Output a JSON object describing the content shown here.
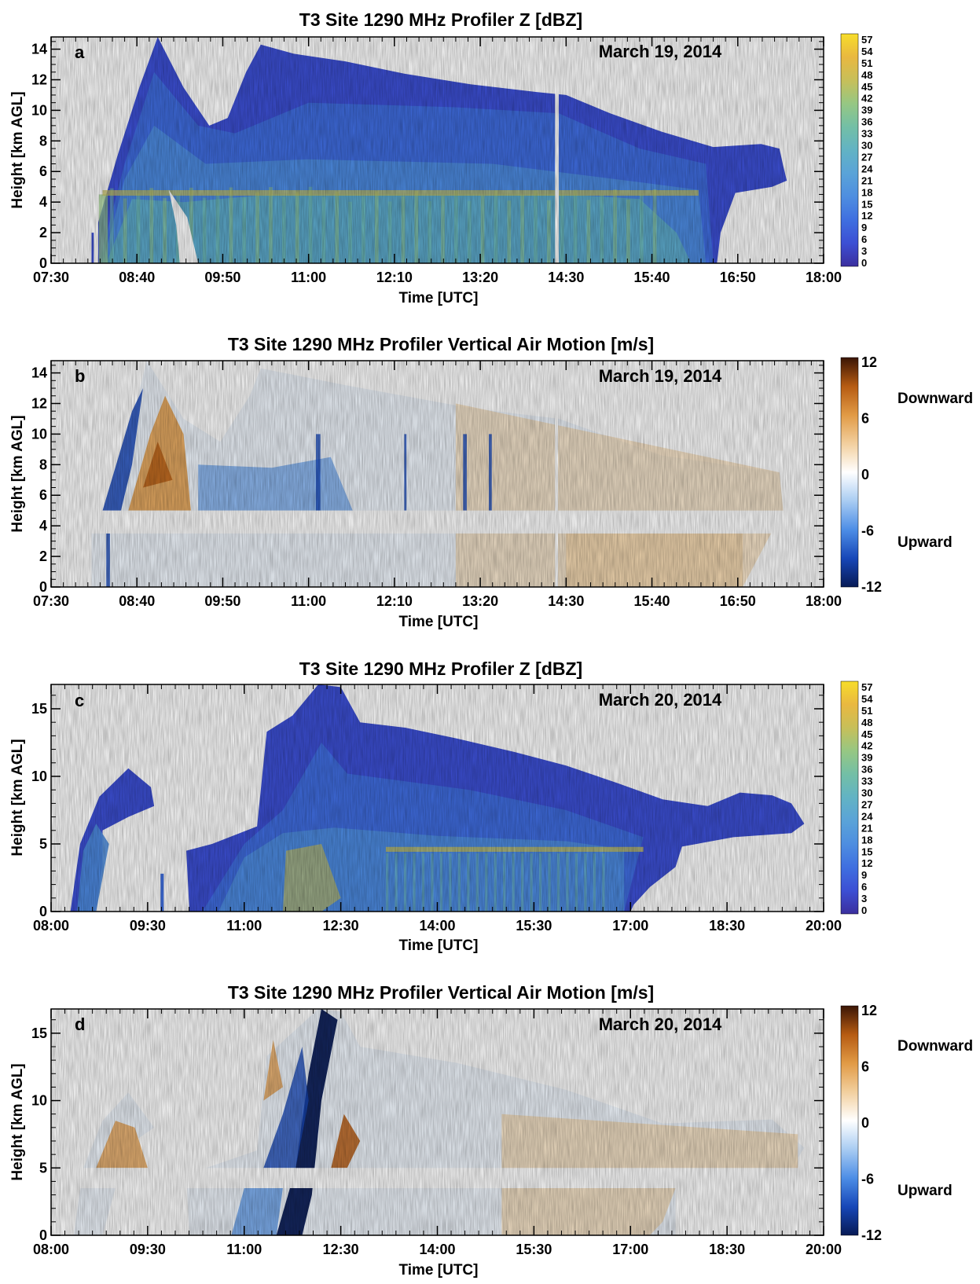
{
  "chart_data": [
    {
      "type": "heatmap",
      "panel": "a",
      "title": "T3 Site 1290 MHz Profiler Z [dBZ]",
      "date": "March 19, 2014",
      "xlabel": "Time [UTC]",
      "ylabel": "Height [km AGL]",
      "x_ticks": [
        "07:30",
        "08:40",
        "09:50",
        "11:00",
        "12:10",
        "13:20",
        "14:30",
        "15:40",
        "16:50",
        "18:00"
      ],
      "y_ticks": [
        "0",
        "2",
        "4",
        "6",
        "8",
        "10",
        "12",
        "14"
      ],
      "y_tick_values": [
        0,
        2,
        4,
        6,
        8,
        10,
        12,
        14
      ],
      "ylim": [
        0,
        14.8
      ],
      "colorbar": {
        "ticks": [
          "0",
          "3",
          "6",
          "9",
          "12",
          "15",
          "18",
          "21",
          "24",
          "27",
          "30",
          "33",
          "36",
          "39",
          "42",
          "45",
          "48",
          "51",
          "54",
          "57"
        ],
        "range": [
          0,
          57
        ]
      },
      "echo_top_km": [
        [
          8.1,
          2.0
        ],
        [
          8.4,
          7.0
        ],
        [
          8.7,
          11.5
        ],
        [
          8.95,
          14.8
        ],
        [
          9.3,
          11.5
        ],
        [
          9.65,
          9.0
        ],
        [
          9.9,
          9.5
        ],
        [
          10.15,
          12.5
        ],
        [
          10.35,
          14.3
        ],
        [
          10.8,
          13.7
        ],
        [
          11.5,
          13.2
        ],
        [
          12.3,
          12.4
        ],
        [
          13.2,
          11.7
        ],
        [
          14.1,
          11.2
        ],
        [
          14.5,
          11.0
        ],
        [
          15.1,
          9.8
        ],
        [
          15.8,
          8.6
        ],
        [
          16.5,
          7.6
        ],
        [
          17.15,
          7.8
        ],
        [
          17.4,
          7.5
        ]
      ],
      "bright_band_km": 4.6
    },
    {
      "type": "heatmap",
      "panel": "b",
      "title": "T3 Site 1290 MHz Profiler Vertical Air Motion [m/s]",
      "date": "March 19, 2014",
      "xlabel": "Time [UTC]",
      "ylabel": "Height [km AGL]",
      "x_ticks": [
        "07:30",
        "08:40",
        "09:50",
        "11:00",
        "12:10",
        "13:20",
        "14:30",
        "15:40",
        "16:50",
        "18:00"
      ],
      "y_ticks": [
        "0",
        "2",
        "4",
        "6",
        "8",
        "10",
        "12",
        "14"
      ],
      "y_tick_values": [
        0,
        2,
        4,
        6,
        8,
        10,
        12,
        14
      ],
      "ylim": [
        0,
        14.8
      ],
      "colorbar": {
        "ticks": [
          "12",
          "6",
          "0",
          "-6",
          "-12"
        ],
        "range": [
          -12,
          12
        ]
      },
      "labels": {
        "top": "Downward",
        "bottom": "Upward"
      },
      "gap_km": [
        3.5,
        5.0
      ]
    },
    {
      "type": "heatmap",
      "panel": "c",
      "title": "T3 Site 1290 MHz Profiler Z [dBZ]",
      "date": "March 20, 2014",
      "xlabel": "Time [UTC]",
      "ylabel": "Height [km AGL]",
      "x_ticks": [
        "08:00",
        "09:30",
        "11:00",
        "12:30",
        "14:00",
        "15:30",
        "17:00",
        "18:30",
        "20:00"
      ],
      "y_ticks": [
        "0",
        "5",
        "10",
        "15"
      ],
      "y_tick_values": [
        0,
        5,
        10,
        15
      ],
      "ylim": [
        0,
        16.8
      ],
      "colorbar": {
        "ticks": [
          "0",
          "3",
          "6",
          "9",
          "12",
          "15",
          "18",
          "21",
          "24",
          "27",
          "30",
          "33",
          "36",
          "39",
          "42",
          "45",
          "48",
          "51",
          "54",
          "57"
        ],
        "range": [
          0,
          57
        ]
      },
      "bright_band_km": 4.6
    },
    {
      "type": "heatmap",
      "panel": "d",
      "title": "T3 Site 1290 MHz Profiler Vertical Air Motion [m/s]",
      "date": "March 20, 2014",
      "xlabel": "Time [UTC]",
      "ylabel": "Height [km AGL]",
      "x_ticks": [
        "08:00",
        "09:30",
        "11:00",
        "12:30",
        "14:00",
        "15:30",
        "17:00",
        "18:30",
        "20:00"
      ],
      "y_ticks": [
        "0",
        "5",
        "10",
        "15"
      ],
      "y_tick_values": [
        0,
        5,
        10,
        15
      ],
      "ylim": [
        0,
        16.8
      ],
      "colorbar": {
        "ticks": [
          "12",
          "6",
          "0",
          "-6",
          "-12"
        ],
        "range": [
          -12,
          12
        ]
      },
      "labels": {
        "top": "Downward",
        "bottom": "Upward"
      },
      "gap_km": [
        3.5,
        5.0
      ]
    }
  ],
  "colors": {
    "z_scale": [
      "#3b2f9e",
      "#3c4fd4",
      "#3f6fe0",
      "#4e8ee0",
      "#5aa3d8",
      "#62b3c4",
      "#73bfa6",
      "#96c783",
      "#c7bf59",
      "#e9b840",
      "#f7dd2a"
    ],
    "w_scale": [
      "#071a55",
      "#1747b8",
      "#4d8ee6",
      "#a9ccf2",
      "#ffffff",
      "#f2cf9e",
      "#e19a45",
      "#b65b12",
      "#3a1505"
    ]
  }
}
